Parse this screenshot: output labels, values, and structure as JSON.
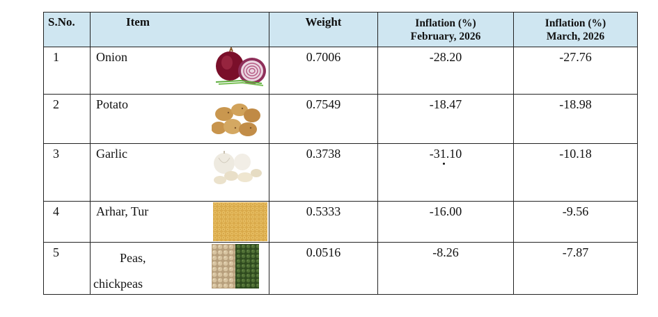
{
  "table": {
    "headers": {
      "sno": "S.No.",
      "item": "Item",
      "weight": "Weight",
      "feb_line1": "Inflation (%)",
      "feb_line2": "February, 2026",
      "mar_line1": "Inflation (%)",
      "mar_line2": "March, 2026"
    },
    "rows": [
      {
        "sno": "1",
        "item": "Onion",
        "weight": "0.7006",
        "feb": "-28.20",
        "mar": "-27.76",
        "icon": "onion-image"
      },
      {
        "sno": "2",
        "item": "Potato",
        "weight": "0.7549",
        "feb": "-18.47",
        "mar": "-18.98",
        "icon": "potato-image"
      },
      {
        "sno": "3",
        "item": "Garlic",
        "weight": "0.3738",
        "feb": "-31.10",
        "mar": "-10.18",
        "icon": "garlic-image"
      },
      {
        "sno": "4",
        "item": "Arhar, Tur",
        "weight": "0.5333",
        "feb": "-16.00",
        "mar": "-9.56",
        "icon": "lentils-image"
      },
      {
        "sno": "5",
        "item_line1": "Peas,",
        "item_line2": "chickpeas",
        "weight": "0.0516",
        "feb": "-8.26",
        "mar": "-7.87",
        "icon": "peas-chickpeas-image"
      }
    ]
  },
  "colors": {
    "header_bg": "#cfe6f1",
    "border": "#222222"
  }
}
